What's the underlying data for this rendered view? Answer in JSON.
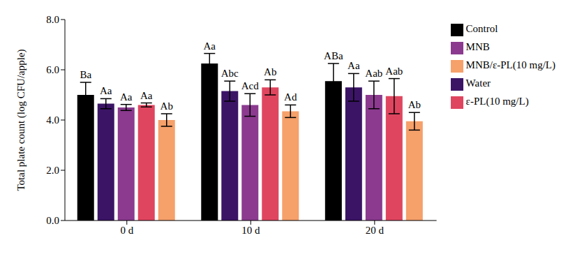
{
  "chart_data": {
    "type": "bar",
    "y_label": "Total plate count (log CFU/apple)",
    "categories": [
      "0 d",
      "10 d",
      "20 d"
    ],
    "ylim": [
      0,
      8
    ],
    "yticks": [
      {
        "value": 0,
        "label": "0.0"
      },
      {
        "value": 2,
        "label": "2.0"
      },
      {
        "value": 4,
        "label": "4.0"
      },
      {
        "value": 6,
        "label": "6.0"
      },
      {
        "value": 8,
        "label": "8.0"
      }
    ],
    "grid": false,
    "legend": "upper right",
    "series": [
      {
        "name": "Control",
        "color": "#000000",
        "values": [
          5.0,
          6.25,
          5.55
        ],
        "errors": [
          0.5,
          0.4,
          0.7
        ],
        "letters": [
          "Ba",
          "Aa",
          "ABa"
        ]
      },
      {
        "name": "Water",
        "color": "#3b1466",
        "values": [
          4.65,
          5.15,
          5.3
        ],
        "errors": [
          0.2,
          0.4,
          0.55
        ],
        "letters": [
          "Aa",
          "Abc",
          "Aa"
        ]
      },
      {
        "name": "MNB",
        "color": "#8b3a8f",
        "values": [
          4.5,
          4.6,
          5.0
        ],
        "errors": [
          0.12,
          0.45,
          0.55
        ],
        "letters": [
          "Aa",
          "Acd",
          "Aab"
        ]
      },
      {
        "name": "ε-PL(10 mg/L)",
        "color": "#e0455f",
        "values": [
          4.6,
          5.3,
          4.95
        ],
        "errors": [
          0.08,
          0.3,
          0.7
        ],
        "letters": [
          "Aa",
          "Ab",
          "Aab"
        ]
      },
      {
        "name": "MNB/ε-PL(10 mg/L)",
        "color": "#f6a06a",
        "values": [
          4.0,
          4.35,
          3.95
        ],
        "errors": [
          0.25,
          0.25,
          0.35
        ],
        "letters": [
          "Ab",
          "Ad",
          "Ab"
        ]
      }
    ]
  }
}
